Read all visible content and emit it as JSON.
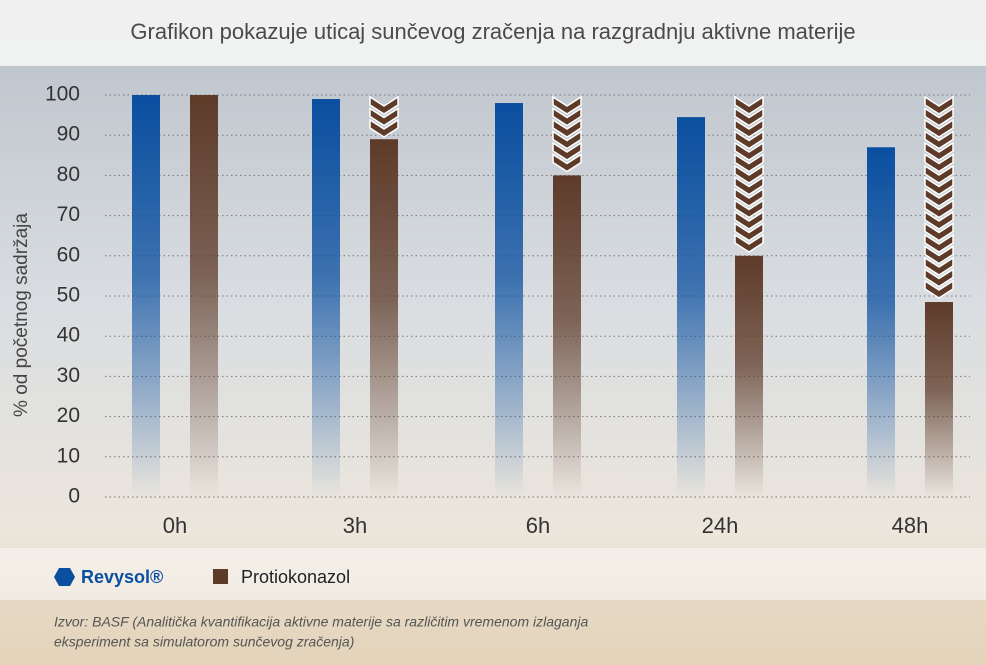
{
  "chart_data": {
    "type": "bar",
    "title": "Grafikon pokazuje uticaj sunčevog zračenja na razgradnju aktivne materije",
    "y_label": "% od početnog sadržaja",
    "categories": [
      "0h",
      "3h",
      "6h",
      "24h",
      "48h"
    ],
    "series": [
      {
        "name": "Revysol®",
        "color": "#0a4fa0",
        "values": [
          100,
          99,
          98,
          94.5,
          87
        ]
      },
      {
        "name": "Protiokonazol",
        "color": "#5e3b29",
        "values": [
          100,
          89,
          80,
          60,
          48.5
        ]
      }
    ],
    "ylim": [
      0,
      100
    ],
    "yticks": [
      0,
      10,
      20,
      30,
      40,
      50,
      60,
      70,
      80,
      90,
      100
    ],
    "grid": true,
    "source": [
      "Izvor: BASF (Analitička kvantifikacija aktivne materije sa različitim vremenom izlaganja",
      "eksperiment sa simulatorom sunčevog zračenja)"
    ]
  }
}
